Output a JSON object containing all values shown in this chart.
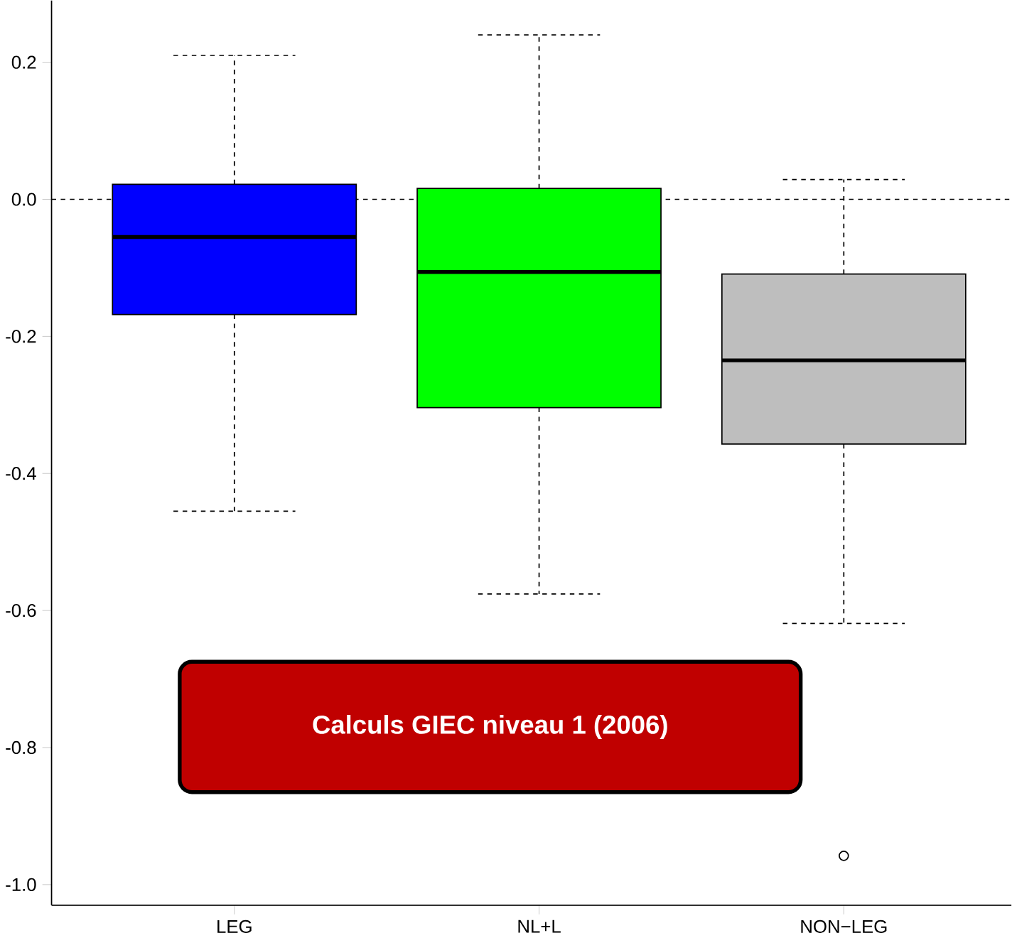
{
  "chart_data": {
    "type": "box",
    "categories": [
      "LEG",
      "NL+L",
      "NON−LEG"
    ],
    "boxes": [
      {
        "low": -0.455,
        "q1": -0.168,
        "median": -0.055,
        "q3": 0.022,
        "high": 0.21
      },
      {
        "low": -0.576,
        "q1": -0.304,
        "median": -0.106,
        "q3": 0.016,
        "high": 0.24
      },
      {
        "low": -0.619,
        "q1": -0.357,
        "median": -0.235,
        "q3": -0.109,
        "high": 0.029,
        "outliers": [
          -0.958
        ]
      }
    ],
    "colors": [
      "#0000ff",
      "#00ff00",
      "#bebebe"
    ],
    "ylim": [
      -1.03,
      0.29
    ],
    "yticks": [
      {
        "value": -1.0,
        "label": "-1.0"
      },
      {
        "value": -0.8,
        "label": "-0.8"
      },
      {
        "value": -0.6,
        "label": "-0.6"
      },
      {
        "value": -0.4,
        "label": "-0.4"
      },
      {
        "value": -0.2,
        "label": "-0.2"
      },
      {
        "value": 0,
        "label": "0.0"
      },
      {
        "value": 0.2,
        "label": "0.2"
      }
    ],
    "ref_lines": [
      {
        "axis": "y",
        "value": 0,
        "line_style": "dashed"
      }
    ],
    "annotations": [
      "Calculs GIEC niveau 1 (2006)"
    ]
  }
}
